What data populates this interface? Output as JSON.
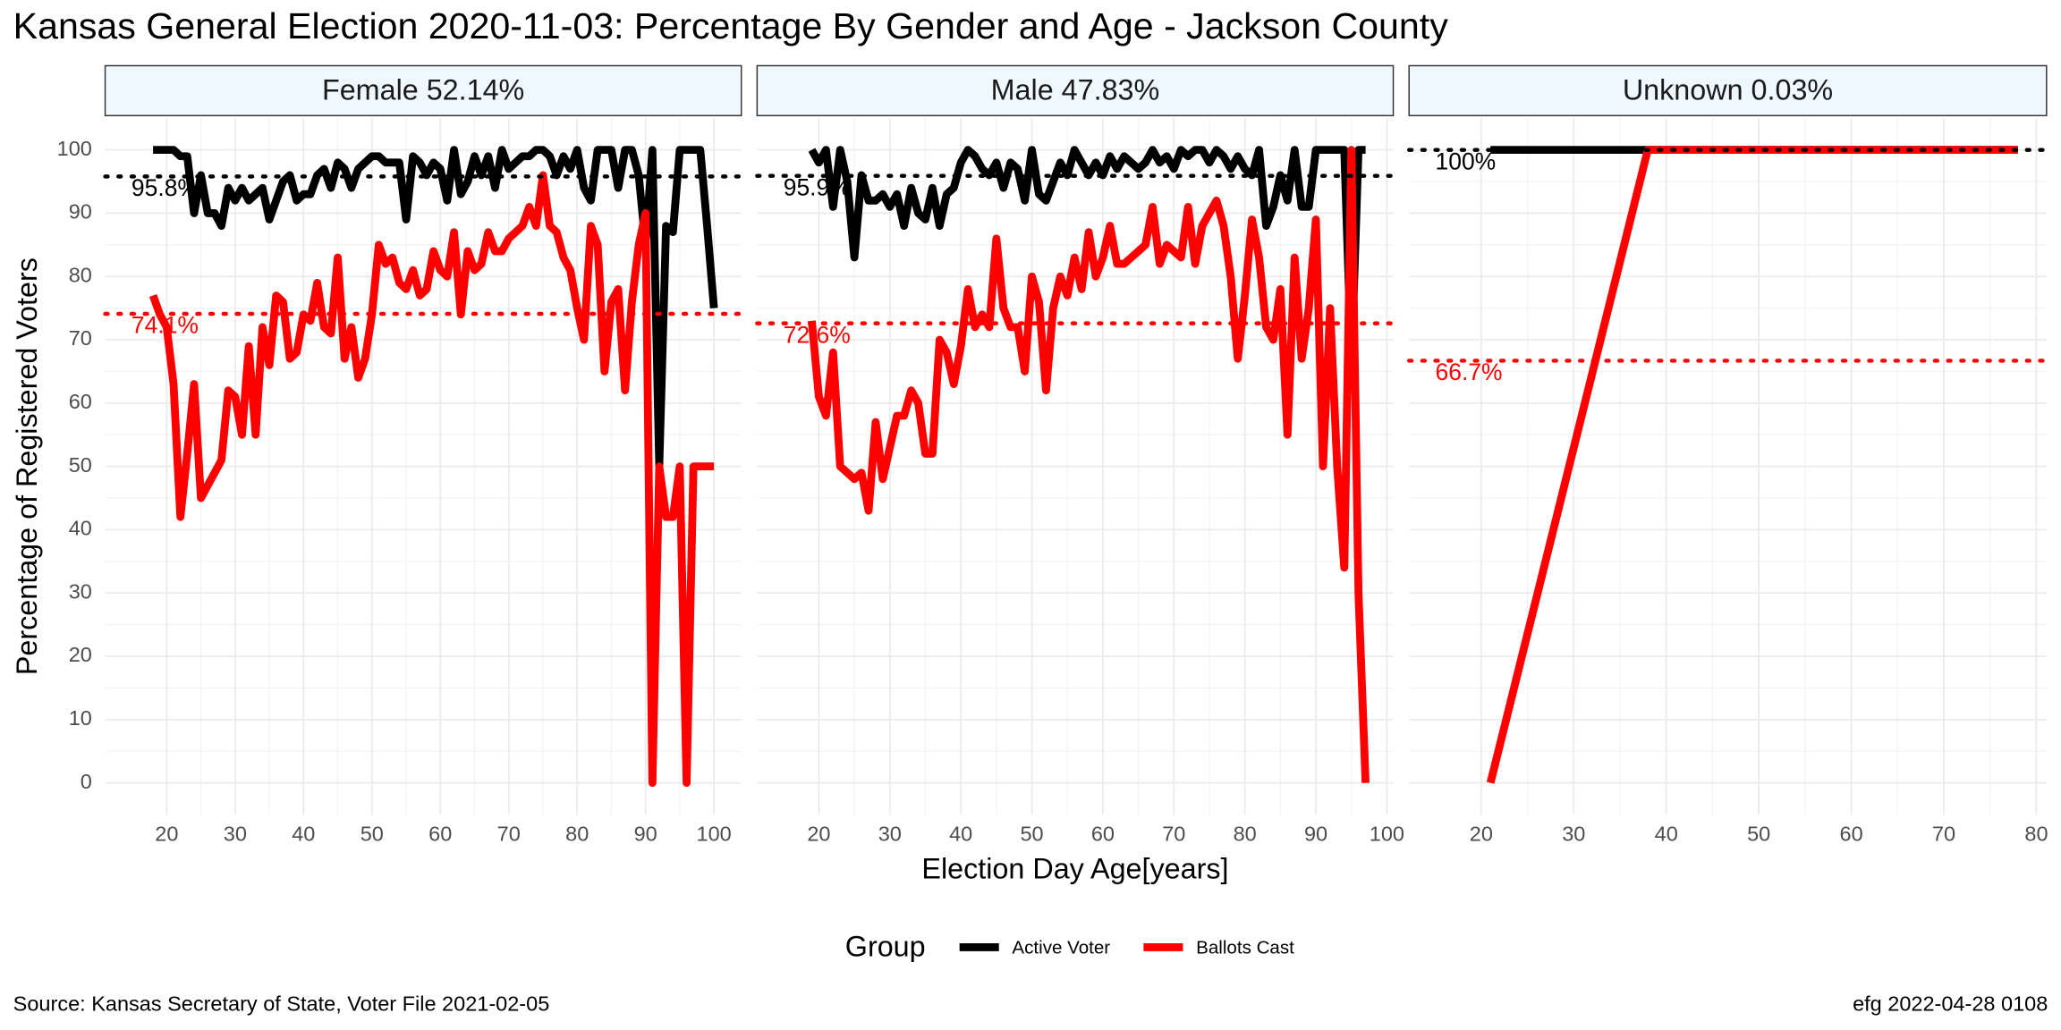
{
  "title": "Kansas General Election 2020-11-03:  Percentage By Gender and Age - Jackson County",
  "x_label": "Election Day Age[years]",
  "y_label": "Percentage of Registered Voters",
  "legend_title": "Group",
  "source": "Source:  Kansas Secretary of State, Voter File  2021-02-05",
  "stamp": "efg 2022-04-28 0108",
  "chart_data": [
    {
      "type": "line",
      "title": "Female 52.14%",
      "x": [
        18,
        19,
        20,
        21,
        22,
        23,
        24,
        25,
        26,
        27,
        28,
        29,
        30,
        31,
        32,
        33,
        34,
        35,
        36,
        37,
        38,
        39,
        40,
        41,
        42,
        43,
        44,
        45,
        46,
        47,
        48,
        49,
        50,
        51,
        52,
        53,
        54,
        55,
        56,
        57,
        58,
        59,
        60,
        61,
        62,
        63,
        64,
        65,
        66,
        67,
        68,
        69,
        70,
        71,
        72,
        73,
        74,
        75,
        76,
        77,
        78,
        79,
        80,
        81,
        82,
        83,
        84,
        85,
        86,
        87,
        88,
        89,
        90,
        91,
        92,
        93,
        94,
        95,
        96,
        97,
        98,
        99,
        100
      ],
      "xlim": [
        11,
        104
      ],
      "xticks": [
        20,
        30,
        40,
        50,
        60,
        70,
        80,
        90,
        100
      ],
      "ylim": [
        -5,
        105
      ],
      "yticks": [
        0,
        10,
        20,
        30,
        40,
        50,
        60,
        70,
        80,
        90,
        100
      ],
      "series": [
        {
          "name": "Active Voter",
          "color": "#000000",
          "values": [
            100,
            100,
            100,
            100,
            99,
            99,
            90,
            96,
            90,
            90,
            88,
            94,
            92,
            94,
            92,
            93,
            94,
            89,
            92,
            95,
            96,
            92,
            93,
            93,
            96,
            97,
            94,
            98,
            97,
            94,
            97,
            98,
            99,
            99,
            98,
            98,
            98,
            89,
            99,
            98,
            96,
            98,
            97,
            92,
            100,
            93,
            95,
            99,
            96,
            99,
            94,
            100,
            97,
            98,
            99,
            99,
            100,
            100,
            99,
            96,
            99,
            97,
            100,
            94,
            92,
            100,
            100,
            100,
            94,
            100,
            100,
            96,
            85,
            100,
            50,
            88,
            87,
            100,
            100,
            100,
            100,
            88,
            75
          ]
        },
        {
          "name": "Ballots Cast",
          "color": "#ff0000",
          "values": [
            77,
            74,
            72,
            63,
            42,
            52,
            63,
            45,
            47,
            49,
            51,
            62,
            61,
            55,
            69,
            55,
            72,
            66,
            77,
            76,
            67,
            68,
            74,
            73,
            79,
            72,
            71,
            83,
            67,
            72,
            64,
            67,
            74,
            85,
            82,
            83,
            79,
            78,
            81,
            77,
            78,
            84,
            81,
            80,
            87,
            74,
            84,
            81,
            82,
            87,
            84,
            84,
            86,
            87,
            88,
            91,
            88,
            96,
            88,
            87,
            83,
            81,
            75,
            70,
            88,
            85,
            65,
            76,
            78,
            62,
            76,
            85,
            90,
            0,
            50,
            42,
            42,
            50,
            0,
            50,
            50,
            50,
            50
          ]
        }
      ],
      "hlines": [
        {
          "value": 95.8,
          "label": "95.8%",
          "color": "#000000"
        },
        {
          "value": 74.1,
          "label": "74.1%",
          "color": "#ff0000"
        }
      ]
    },
    {
      "type": "line",
      "title": "Male 47.83%",
      "x": [
        19,
        20,
        21,
        22,
        23,
        24,
        25,
        26,
        27,
        28,
        29,
        30,
        31,
        32,
        33,
        34,
        35,
        36,
        37,
        38,
        39,
        40,
        41,
        42,
        43,
        44,
        45,
        46,
        47,
        48,
        49,
        50,
        51,
        52,
        53,
        54,
        55,
        56,
        57,
        58,
        59,
        60,
        61,
        62,
        63,
        64,
        65,
        66,
        67,
        68,
        69,
        70,
        71,
        72,
        73,
        74,
        75,
        76,
        77,
        78,
        79,
        80,
        81,
        82,
        83,
        84,
        85,
        86,
        87,
        88,
        89,
        90,
        91,
        92,
        93,
        94,
        95,
        96,
        97
      ],
      "xlim": [
        11.3,
        100.9
      ],
      "xticks": [
        20,
        30,
        40,
        50,
        60,
        70,
        80,
        90,
        100
      ],
      "ylim": [
        -5,
        105
      ],
      "yticks": [
        0,
        10,
        20,
        30,
        40,
        50,
        60,
        70,
        80,
        90,
        100
      ],
      "series": [
        {
          "name": "Active Voter",
          "color": "#000000",
          "values": [
            100,
            98,
            100,
            91,
            100,
            95,
            83,
            96,
            92,
            92,
            93,
            91,
            93,
            88,
            94,
            90,
            89,
            94,
            88,
            93,
            94,
            98,
            100,
            99,
            97,
            96,
            98,
            94,
            98,
            97,
            92,
            100,
            93,
            92,
            95,
            98,
            96,
            100,
            98,
            96,
            98,
            96,
            99,
            97,
            99,
            98,
            97,
            98,
            100,
            98,
            99,
            97,
            100,
            99,
            100,
            100,
            98,
            100,
            99,
            97,
            99,
            97,
            96,
            100,
            88,
            91,
            96,
            92,
            100,
            91,
            91,
            100,
            100,
            100,
            100,
            100,
            66,
            100,
            100
          ]
        },
        {
          "name": "Ballots Cast",
          "color": "#ff0000",
          "values": [
            73,
            61,
            58,
            68,
            50,
            49,
            48,
            49,
            43,
            57,
            48,
            53,
            58,
            58,
            62,
            60,
            52,
            52,
            70,
            68,
            63,
            69,
            78,
            72,
            74,
            72,
            86,
            75,
            72,
            72,
            65,
            80,
            76,
            62,
            75,
            80,
            77,
            83,
            78,
            87,
            80,
            83,
            88,
            82,
            82,
            83,
            84,
            85,
            91,
            82,
            85,
            84,
            83,
            91,
            82,
            88,
            90,
            92,
            88,
            80,
            67,
            77,
            89,
            83,
            72,
            70,
            78,
            55,
            83,
            67,
            75,
            89,
            50,
            75,
            50,
            34,
            100,
            30,
            0
          ]
        }
      ],
      "hlines": [
        {
          "value": 95.9,
          "label": "95.9%",
          "color": "#000000"
        },
        {
          "value": 72.6,
          "label": "72.6%",
          "color": "#ff0000"
        }
      ]
    },
    {
      "type": "line",
      "title": "Unknown 0.03%",
      "x": [
        21,
        38,
        78
      ],
      "xlim": [
        12.2,
        81.1
      ],
      "xticks": [
        20,
        30,
        40,
        50,
        60,
        70,
        80
      ],
      "ylim": [
        -5,
        105
      ],
      "yticks": [
        0,
        10,
        20,
        30,
        40,
        50,
        60,
        70,
        80,
        90,
        100
      ],
      "series": [
        {
          "name": "Active Voter",
          "color": "#000000",
          "values": [
            100,
            100,
            100
          ]
        },
        {
          "name": "Ballots Cast",
          "color": "#ff0000",
          "values": [
            0,
            100,
            100
          ]
        }
      ],
      "hlines": [
        {
          "value": 100,
          "label": "100%",
          "color": "#000000"
        },
        {
          "value": 66.7,
          "label": "66.7%",
          "color": "#ff0000"
        }
      ]
    }
  ]
}
